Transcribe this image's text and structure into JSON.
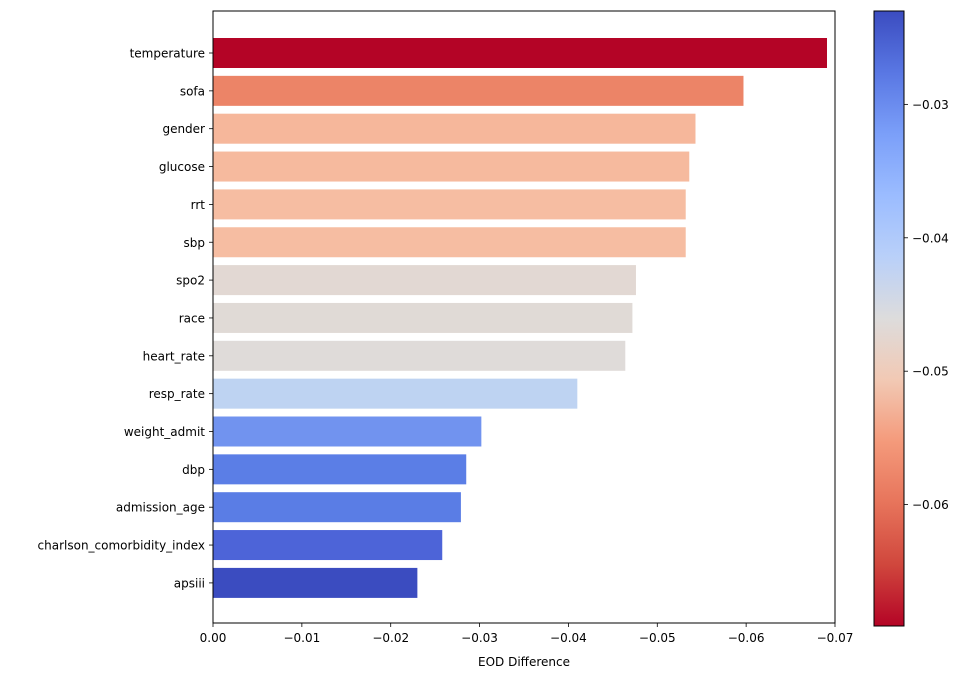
{
  "chart_data": {
    "type": "bar",
    "orientation": "horizontal",
    "categories": [
      "temperature",
      "sofa",
      "gender",
      "glucose",
      "rrt",
      "sbp",
      "spo2",
      "race",
      "heart_rate",
      "resp_rate",
      "weight_admit",
      "dbp",
      "admission_age",
      "charlson_comorbidity_index",
      "apsiii"
    ],
    "values": [
      -0.0691,
      -0.0597,
      -0.0543,
      -0.0536,
      -0.0532,
      -0.0532,
      -0.0476,
      -0.0472,
      -0.0464,
      -0.041,
      -0.0302,
      -0.0285,
      -0.0279,
      -0.0258,
      -0.023
    ],
    "colors": [
      "#b40426",
      "#ec8467",
      "#f6b79b",
      "#f6ba9e",
      "#f6bda2",
      "#f6bda2",
      "#e2d8d3",
      "#e0dad6",
      "#dfdbd9",
      "#bed3f2",
      "#7193ef",
      "#5b7ee6",
      "#5a7de5",
      "#4d64d8",
      "#3b4cc0"
    ],
    "xlabel": "EOD Difference",
    "ylabel": "",
    "title": "",
    "xlim": [
      0.0,
      -0.07
    ],
    "xticks": [
      {
        "value": 0.0,
        "label": "0.00"
      },
      {
        "value": -0.01,
        "label": "−0.01"
      },
      {
        "value": -0.02,
        "label": "−0.02"
      },
      {
        "value": -0.03,
        "label": "−0.03"
      },
      {
        "value": -0.04,
        "label": "−0.04"
      },
      {
        "value": -0.05,
        "label": "−0.05"
      },
      {
        "value": -0.06,
        "label": "−0.06"
      },
      {
        "value": -0.07,
        "label": "−0.07"
      }
    ],
    "grid": false,
    "colorbar": {
      "colormap": "coolwarm_r",
      "range": [
        -0.0691,
        -0.023
      ],
      "ticks": [
        {
          "value": -0.03,
          "label": "−0.03"
        },
        {
          "value": -0.04,
          "label": "−0.04"
        },
        {
          "value": -0.05,
          "label": "−0.05"
        },
        {
          "value": -0.06,
          "label": "−0.06"
        }
      ],
      "top_color": "#3b4cc0",
      "bottom_color": "#b40426"
    }
  }
}
